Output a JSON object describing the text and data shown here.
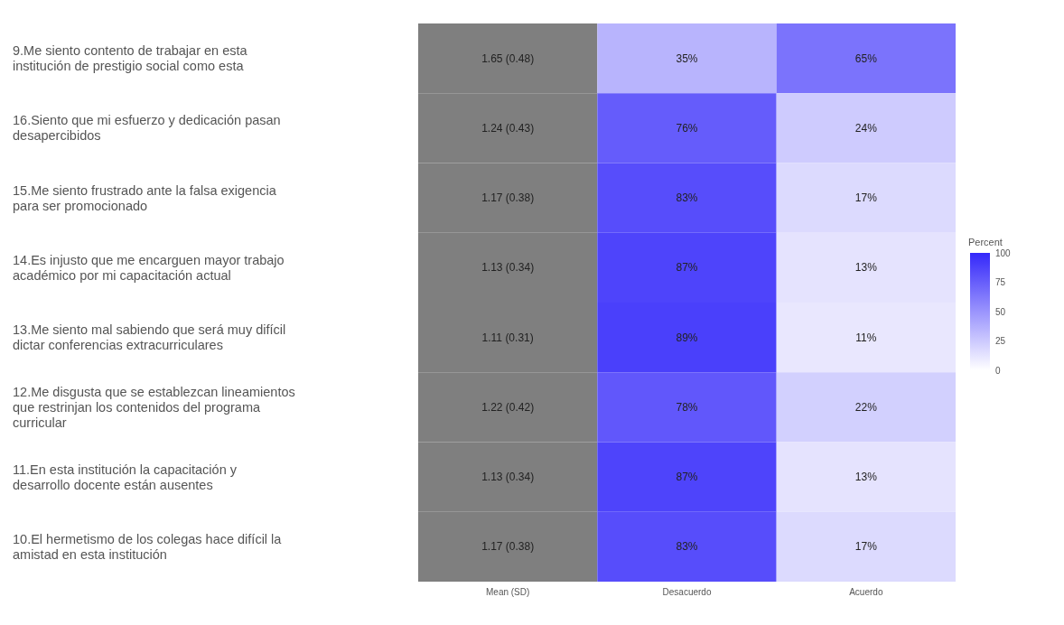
{
  "chart_data": {
    "type": "heatmap",
    "categories": [
      "Mean (SD)",
      "Desacuerdo",
      "Acuerdo"
    ],
    "y_categories": [
      "9.Me siento contento de trabajar en esta institución de prestigio social como esta",
      "16.Siento que mi esfuerzo y dedicación pasan desapercibidos",
      "15.Me siento frustrado ante la falsa exigencia para ser promocionado",
      "14.Es injusto que me encarguen mayor trabajo académico por mi capacitación actual",
      "13.Me siento mal sabiendo que será muy difícil dictar conferencias extracurriculares",
      "12.Me disgusta que se establezcan lineamientos que restrinjan los contenidos del programa curricular",
      "11.En esta institución la capacitación y desarrollo docente están ausentes",
      "10.El hermetismo de los colegas hace difícil la amistad en esta institución"
    ],
    "cells": [
      [
        null,
        35,
        65
      ],
      [
        null,
        76,
        24
      ],
      [
        null,
        83,
        17
      ],
      [
        null,
        87,
        13
      ],
      [
        null,
        89,
        11
      ],
      [
        null,
        78,
        22
      ],
      [
        null,
        87,
        13
      ],
      [
        null,
        83,
        17
      ]
    ],
    "cell_labels": [
      [
        "1.65 (0.48)",
        "35%",
        "65%"
      ],
      [
        "1.24 (0.43)",
        "76%",
        "24%"
      ],
      [
        "1.17 (0.38)",
        "83%",
        "17%"
      ],
      [
        "1.13 (0.34)",
        "87%",
        "13%"
      ],
      [
        "1.11 (0.31)",
        "89%",
        "11%"
      ],
      [
        "1.22 (0.42)",
        "78%",
        "22%"
      ],
      [
        "1.13 (0.34)",
        "87%",
        "13%"
      ],
      [
        "1.17 (0.38)",
        "83%",
        "17%"
      ]
    ],
    "clabel": "Percent",
    "clim": [
      0,
      100
    ],
    "cticks": [
      0,
      25,
      50,
      75,
      100
    ]
  }
}
